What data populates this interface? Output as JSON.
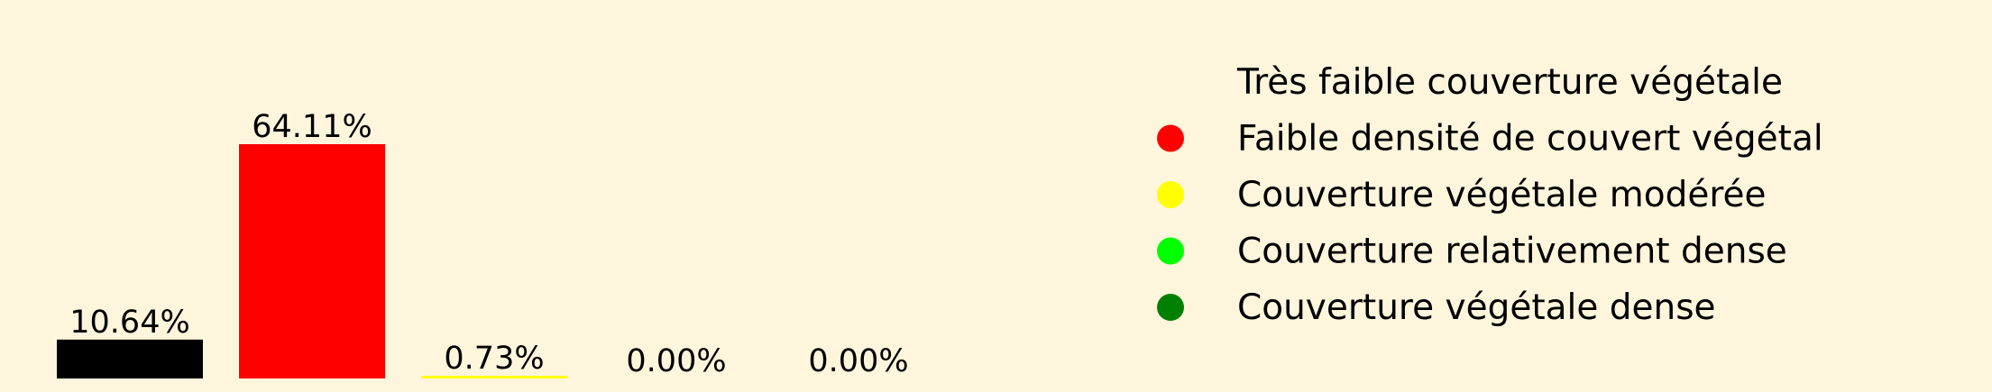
{
  "chart_data": {
    "type": "bar",
    "categories": [
      "Très faible couverture végétale",
      "Faible densité de couvert végétal",
      "Couverture végétale modérée",
      "Couverture relativement dense",
      "Couverture végétale dense"
    ],
    "values": [
      10.64,
      64.11,
      0.73,
      0.0,
      0.0
    ],
    "value_labels": [
      "10.64%",
      "64.11%",
      "0.73%",
      "0.00%",
      "0.00%"
    ],
    "colors": [
      "#000000",
      "#ff0000",
      "#ffff00",
      "#00ff00",
      "#008000"
    ],
    "unit": "%",
    "ylim": [
      0,
      70
    ],
    "grid": false,
    "legend": {
      "placement": "right",
      "entries": [
        "Très faible couverture végétale",
        "Faible densité de couvert végétal",
        "Couverture végétale modérée",
        "Couverture relativement dense",
        "Couverture végétale dense"
      ]
    },
    "background": "#fdf5dc"
  }
}
